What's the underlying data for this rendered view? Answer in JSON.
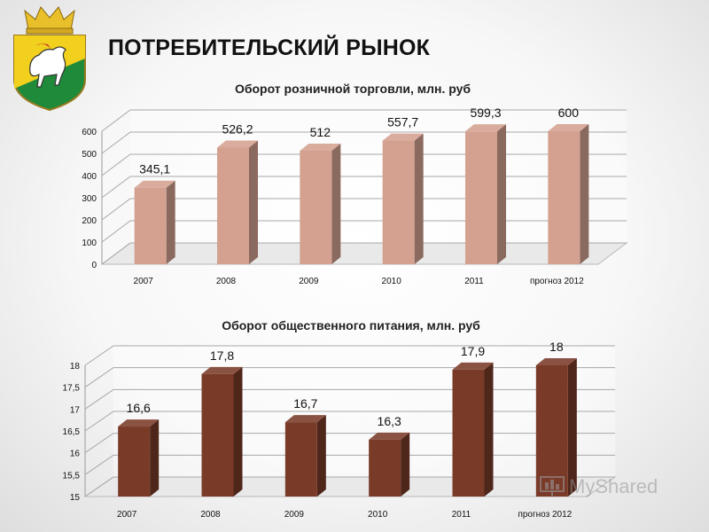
{
  "header": {
    "title": "ПОТРЕБИТЕЛЬСКИЙ РЫНОК"
  },
  "watermark": {
    "text": "MyShared"
  },
  "colors": {
    "retail_bar": "#d4a190",
    "food_bar": "#7a3a28"
  },
  "chart_data": [
    {
      "type": "bar",
      "title": "Оборот розничной торговли, млн. руб",
      "categories": [
        "2007",
        "2008",
        "2009",
        "2010",
        "2011",
        "прогноз 2012"
      ],
      "values": [
        345.1,
        526.2,
        512,
        557.7,
        599.3,
        600
      ],
      "value_labels": [
        "345,1",
        "526,2",
        "512",
        "557,7",
        "599,3",
        "600"
      ],
      "yticks": [
        "0",
        "100",
        "200",
        "300",
        "400",
        "500",
        "600"
      ],
      "ylim": [
        0,
        600
      ],
      "xlabel": "",
      "ylabel": "",
      "grid": true,
      "style": "3d-column"
    },
    {
      "type": "bar",
      "title": "Оборот общественного питания, млн. руб",
      "categories": [
        "2007",
        "2008",
        "2009",
        "2010",
        "2011",
        "прогноз 2012"
      ],
      "values": [
        16.6,
        17.8,
        16.7,
        16.3,
        17.9,
        18
      ],
      "value_labels": [
        "16,6",
        "17,8",
        "16,7",
        "16,3",
        "17,9",
        "18"
      ],
      "yticks": [
        "15",
        "15,5",
        "16",
        "16,5",
        "17",
        "17,5",
        "18"
      ],
      "ylim": [
        15,
        18
      ],
      "xlabel": "",
      "ylabel": "",
      "grid": true,
      "style": "3d-column"
    }
  ]
}
